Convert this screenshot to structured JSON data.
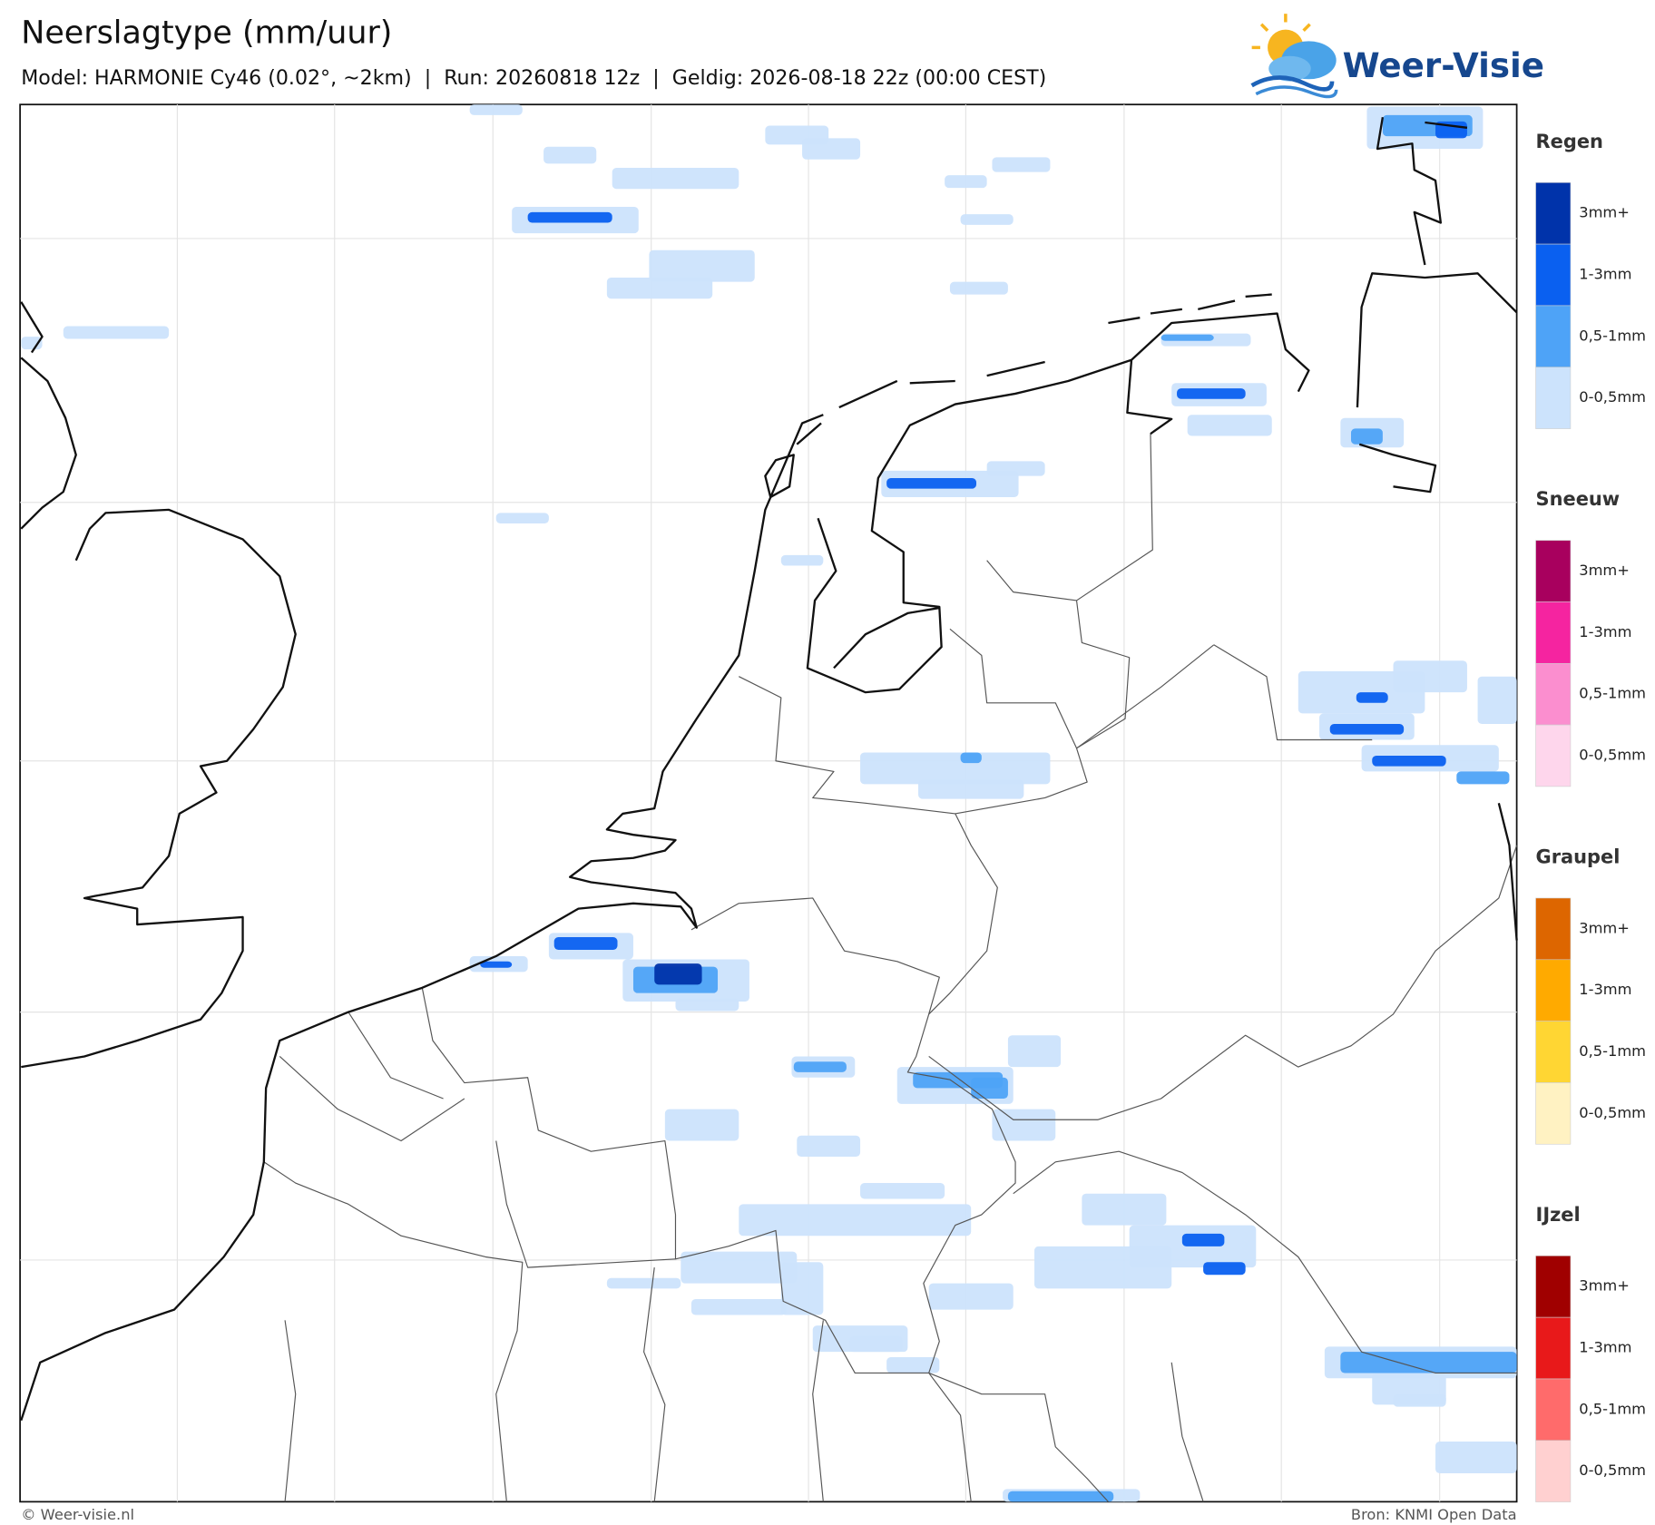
{
  "header": {
    "title": "Neerslagtype (mm/uur)",
    "subtitle": "Model: HARMONIE Cy46 (0.02°, ~2km)  |  Run: 20260818 12z  |  Geldig: 2026-08-18 22z (00:00 CEST)",
    "logo": "Weer-Visie"
  },
  "legend": [
    {
      "title": "Regen",
      "items": [
        {
          "label": "3mm+",
          "color": "#0033aa"
        },
        {
          "label": "1-3mm",
          "color": "#0a60f0"
        },
        {
          "label": "0,5-1mm",
          "color": "#4ea3f7"
        },
        {
          "label": "0-0,5mm",
          "color": "#cce3fc"
        }
      ]
    },
    {
      "title": "Sneeuw",
      "items": [
        {
          "label": "3mm+",
          "color": "#a8005e"
        },
        {
          "label": "1-3mm",
          "color": "#f524a0"
        },
        {
          "label": "0,5-1mm",
          "color": "#fb8ecf"
        },
        {
          "label": "0-0,5mm",
          "color": "#fed6ec"
        }
      ]
    },
    {
      "title": "Graupel",
      "items": [
        {
          "label": "3mm+",
          "color": "#dd6600"
        },
        {
          "label": "1-3mm",
          "color": "#ffaa00"
        },
        {
          "label": "0,5-1mm",
          "color": "#ffd633"
        },
        {
          "label": "0-0,5mm",
          "color": "#fff2c2"
        }
      ]
    },
    {
      "title": "IJzel",
      "items": [
        {
          "label": "3mm+",
          "color": "#a00000"
        },
        {
          "label": "1-3mm",
          "color": "#e8191a"
        },
        {
          "label": "0,5-1mm",
          "color": "#ff6b6b"
        },
        {
          "label": "0-0,5mm",
          "color": "#ffd0d0"
        }
      ]
    }
  ],
  "footer": {
    "copyright": "© Weer-visie.nl",
    "source": "Bron: KNMI Open Data"
  }
}
